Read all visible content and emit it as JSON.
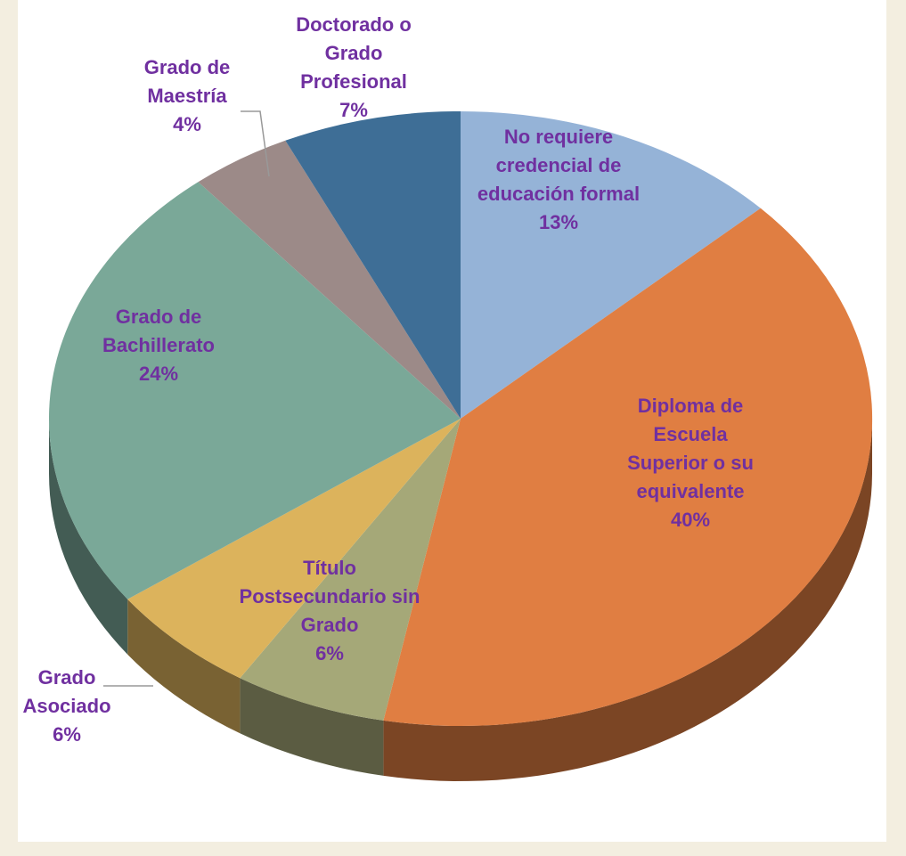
{
  "chart_data": {
    "type": "pie",
    "categories": [
      "No requiere credencial de educación formal",
      "Diploma de Escuela Superior o su equivalente",
      "Título Postsecundario sin Grado",
      "Grado Asociado",
      "Grado de Bachillerato",
      "Grado de Maestría",
      "Doctorado o Grado Profesional"
    ],
    "values": [
      13,
      40,
      6,
      6,
      24,
      4,
      7
    ],
    "value_labels": [
      "13%",
      "40%",
      "6%",
      "6%",
      "24%",
      "4%",
      "7%"
    ],
    "colors": [
      "#95b3d7",
      "#e07e42",
      "#a5a878",
      "#dcb35c",
      "#7aa898",
      "#9c8a88",
      "#3e6e96"
    ]
  }
}
